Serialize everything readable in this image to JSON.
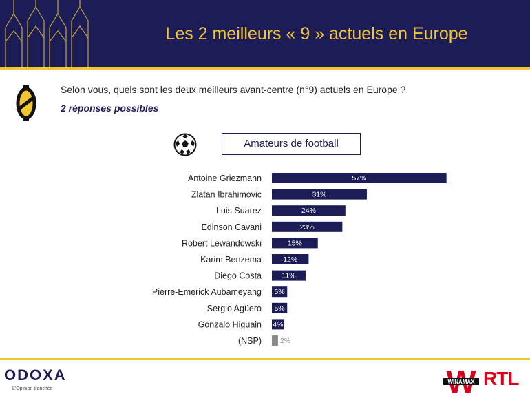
{
  "header": {
    "title": "Les 2 meilleurs « 9 » actuels en Europe"
  },
  "question": {
    "text": "Selon vous, quels sont les deux meilleurs avant-centre (n°9) actuels en Europe ?",
    "note": "2 réponses possibles"
  },
  "segment": {
    "label": "Amateurs de football"
  },
  "icons": {
    "ball": "football-icon",
    "logo": "odoxa-o-icon"
  },
  "colors": {
    "navy": "#1c1d56",
    "gold": "#f2c631",
    "nsp": "#8a8a8a",
    "rtl": "#e1001a",
    "winamax": "#d4001e"
  },
  "chart_data": {
    "type": "bar",
    "orientation": "horizontal",
    "categories": [
      "Antoine Griezmann",
      "Zlatan Ibrahimovic",
      "Luis Suarez",
      "Edinson Cavani",
      "Robert Lewandowski",
      "Karim Benzema",
      "Diego Costa",
      "Pierre-Emerick Aubameyang",
      "Sergio Agüero",
      "Gonzalo Higuain",
      "(NSP)"
    ],
    "values": [
      57,
      31,
      24,
      23,
      15,
      12,
      11,
      5,
      5,
      4,
      2
    ],
    "value_labels": [
      "57%",
      "31%",
      "24%",
      "23%",
      "15%",
      "12%",
      "11%",
      "5%",
      "5%",
      "4%",
      "2%"
    ],
    "xlim": [
      0,
      100
    ],
    "grid": false,
    "legend": "none"
  },
  "footer": {
    "brand": "ODOXA",
    "tagline": "L'Opinion tranchée",
    "partner_1": "WINAMAX",
    "partner_1_letter": "W",
    "partner_2": "RTL"
  }
}
